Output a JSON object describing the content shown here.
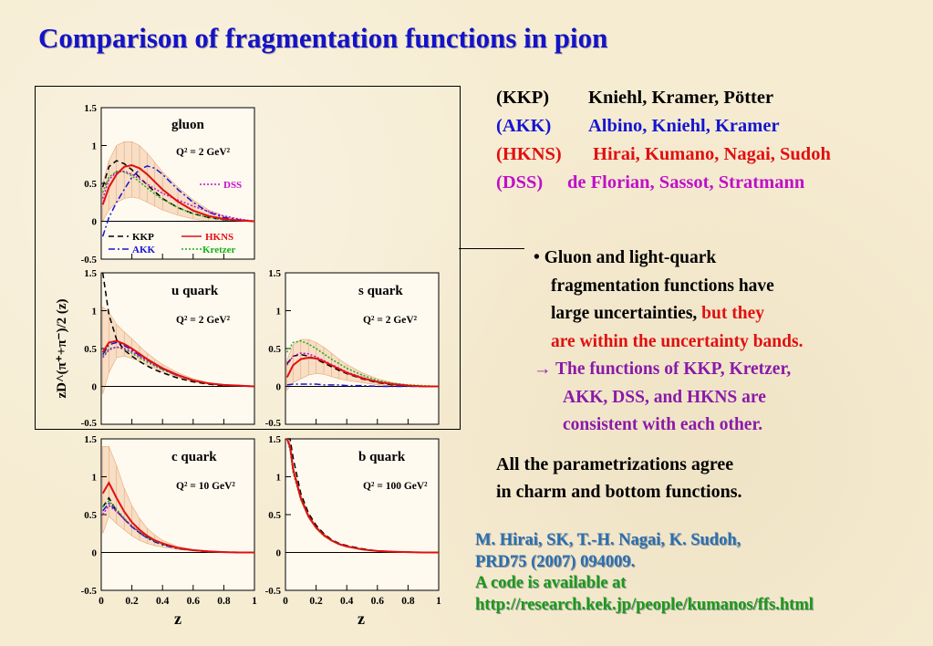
{
  "title": "Comparison of fragmentation functions in pion",
  "references": [
    {
      "tag": "(KKP)",
      "authors": "Kniehl, Kramer, Pötter",
      "color": "#000000"
    },
    {
      "tag": "(AKK)",
      "authors": "Albino, Kniehl, Kramer",
      "color": "#1515d0"
    },
    {
      "tag": "(HKNS)",
      "authors": "Hirai, Kumano, Nagai, Sudoh",
      "color": "#e01010"
    },
    {
      "tag": "(DSS)",
      "authors": "de Florian, Sassot, Stratmann",
      "color": "#c010c8"
    }
  ],
  "bullet": {
    "line1": "• Gluon and light-quark",
    "line2": "fragmentation functions have",
    "line3a": "large uncertainties, ",
    "line3b": "but they",
    "line4": "are within the uncertainty bands.",
    "line5": "→ The functions of KKP, Kretzer,",
    "line6": "AKK, DSS, and HKNS are",
    "line7": "consistent with each other."
  },
  "agree": {
    "line1": "All the parametrizations agree",
    "line2": "in charm and bottom functions."
  },
  "citation": {
    "line1": "M. Hirai,  SK,  T.-H. Nagai,  K. Sudoh,",
    "line2": "PRD75 (2007) 094009.",
    "line3": "A code is available at",
    "line4": "http://research.kek.jp/people/kumanos/ffs.html"
  },
  "colors": {
    "title": "#1313c8",
    "red": "#e01010",
    "purple": "#8a1aa8",
    "cite_blue": "#2a6fb0",
    "cite_green": "#1a9a1a",
    "band": "#e8b48a"
  },
  "chart_data": {
    "type": "line",
    "ylabel": "zD^(π⁺+π⁻)/2 (z)",
    "xlabel": "z",
    "xlim": [
      0,
      1
    ],
    "ylim": [
      -0.5,
      1.5
    ],
    "xticks": [
      "0",
      "0.2",
      "0.4",
      "0.6",
      "0.8",
      "1"
    ],
    "yticks": [
      "-0.5",
      "0",
      "0.5",
      "1",
      "1.5"
    ],
    "legend": [
      {
        "name": "KKP",
        "color": "#000000",
        "style": "dashed"
      },
      {
        "name": "HKNS",
        "color": "#e01010",
        "style": "solid"
      },
      {
        "name": "AKK",
        "color": "#1515d0",
        "style": "dashdot"
      },
      {
        "name": "Kretzer",
        "color": "#18b018",
        "style": "dotted"
      },
      {
        "name": "DSS",
        "color": "#c010c8",
        "style": "dotted"
      }
    ],
    "panels": [
      {
        "label": "gluon",
        "q2": "Q² = 2 GeV²",
        "x": [
          0.01,
          0.05,
          0.1,
          0.15,
          0.2,
          0.25,
          0.3,
          0.35,
          0.4,
          0.5,
          0.6,
          0.7,
          0.8,
          0.9,
          1.0
        ],
        "series": {
          "KKP": [
            0.45,
            0.72,
            0.8,
            0.76,
            0.68,
            0.58,
            0.48,
            0.39,
            0.3,
            0.18,
            0.1,
            0.05,
            0.02,
            0.01,
            0.0
          ],
          "HKNS": [
            0.22,
            0.45,
            0.62,
            0.72,
            0.74,
            0.7,
            0.62,
            0.52,
            0.42,
            0.26,
            0.14,
            0.07,
            0.03,
            0.01,
            0.0
          ],
          "AKK": [
            -0.2,
            0.05,
            0.25,
            0.42,
            0.58,
            0.68,
            0.73,
            0.7,
            0.62,
            0.42,
            0.25,
            0.12,
            0.05,
            0.02,
            0.0
          ],
          "Kretzer": [
            0.38,
            0.58,
            0.66,
            0.65,
            0.6,
            0.52,
            0.44,
            0.36,
            0.29,
            0.18,
            0.1,
            0.05,
            0.02,
            0.01,
            0.0
          ],
          "DSS": [
            0.3,
            0.55,
            0.65,
            0.66,
            0.62,
            0.56,
            0.49,
            0.43,
            0.37,
            0.28,
            0.2,
            0.13,
            0.07,
            0.03,
            0.0
          ]
        },
        "band_upper": [
          0.5,
          0.8,
          1.0,
          1.05,
          1.05,
          1.0,
          0.9,
          0.78,
          0.65,
          0.45,
          0.28,
          0.15,
          0.07,
          0.03,
          0.0
        ],
        "band_lower": [
          0.0,
          0.15,
          0.25,
          0.3,
          0.32,
          0.3,
          0.25,
          0.2,
          0.15,
          0.08,
          0.03,
          0.0,
          0.0,
          0.0,
          0.0
        ]
      },
      {
        "label": "u quark",
        "q2": "Q² = 2 GeV²",
        "x": [
          0.01,
          0.05,
          0.1,
          0.15,
          0.2,
          0.25,
          0.3,
          0.35,
          0.4,
          0.5,
          0.6,
          0.7,
          0.8,
          0.9,
          1.0
        ],
        "series": {
          "KKP": [
            1.5,
            0.95,
            0.62,
            0.48,
            0.4,
            0.33,
            0.27,
            0.22,
            0.18,
            0.11,
            0.06,
            0.03,
            0.01,
            0.005,
            0.0
          ],
          "HKNS": [
            0.45,
            0.58,
            0.6,
            0.56,
            0.5,
            0.43,
            0.36,
            0.3,
            0.24,
            0.15,
            0.08,
            0.04,
            0.02,
            0.01,
            0.0
          ],
          "AKK": [
            0.42,
            0.55,
            0.58,
            0.54,
            0.48,
            0.41,
            0.35,
            0.29,
            0.23,
            0.14,
            0.08,
            0.04,
            0.02,
            0.01,
            0.0
          ],
          "Kretzer": [
            0.4,
            0.5,
            0.52,
            0.49,
            0.44,
            0.38,
            0.32,
            0.27,
            0.22,
            0.14,
            0.08,
            0.04,
            0.02,
            0.01,
            0.0
          ],
          "DSS": [
            0.38,
            0.48,
            0.52,
            0.5,
            0.46,
            0.4,
            0.34,
            0.28,
            0.23,
            0.14,
            0.08,
            0.04,
            0.02,
            0.01,
            0.0
          ]
        },
        "band_upper": [
          1.05,
          0.98,
          0.82,
          0.72,
          0.63,
          0.53,
          0.44,
          0.36,
          0.29,
          0.18,
          0.1,
          0.05,
          0.02,
          0.01,
          0.0
        ],
        "band_lower": [
          -0.1,
          0.18,
          0.38,
          0.4,
          0.37,
          0.33,
          0.28,
          0.24,
          0.19,
          0.12,
          0.06,
          0.03,
          0.01,
          0.0,
          0.0
        ]
      },
      {
        "label": "s quark",
        "q2": "Q² = 2 GeV²",
        "x": [
          0.01,
          0.05,
          0.1,
          0.15,
          0.2,
          0.25,
          0.3,
          0.35,
          0.4,
          0.5,
          0.6,
          0.7,
          0.8,
          0.9,
          1.0
        ],
        "series": {
          "KKP": [
            0.3,
            0.4,
            0.42,
            0.4,
            0.36,
            0.31,
            0.26,
            0.21,
            0.17,
            0.1,
            0.05,
            0.02,
            0.01,
            0.0,
            0.0
          ],
          "HKNS": [
            0.12,
            0.28,
            0.36,
            0.38,
            0.37,
            0.33,
            0.28,
            0.23,
            0.18,
            0.11,
            0.06,
            0.03,
            0.01,
            0.0,
            0.0
          ],
          "AKK": [
            0.02,
            0.03,
            0.03,
            0.03,
            0.03,
            0.02,
            0.02,
            0.02,
            0.01,
            0.01,
            0.0,
            0.0,
            0.0,
            0.0,
            0.0
          ],
          "Kretzer": [
            0.45,
            0.58,
            0.6,
            0.56,
            0.5,
            0.43,
            0.36,
            0.3,
            0.24,
            0.15,
            0.08,
            0.04,
            0.02,
            0.01,
            0.0
          ],
          "DSS": [
            0.28,
            0.4,
            0.44,
            0.43,
            0.39,
            0.34,
            0.29,
            0.24,
            0.19,
            0.12,
            0.06,
            0.03,
            0.01,
            0.0,
            0.0
          ]
        },
        "band_upper": [
          0.35,
          0.55,
          0.62,
          0.62,
          0.58,
          0.52,
          0.44,
          0.36,
          0.29,
          0.18,
          0.1,
          0.05,
          0.02,
          0.01,
          0.0
        ],
        "band_lower": [
          -0.05,
          0.05,
          0.1,
          0.15,
          0.17,
          0.16,
          0.13,
          0.1,
          0.08,
          0.05,
          0.02,
          0.01,
          0.0,
          0.0,
          0.0
        ]
      },
      {
        "label": "c quark",
        "q2": "Q² = 10 GeV²",
        "x": [
          0.01,
          0.05,
          0.1,
          0.15,
          0.2,
          0.25,
          0.3,
          0.35,
          0.4,
          0.5,
          0.6,
          0.7,
          0.8,
          0.9,
          1.0
        ],
        "series": {
          "KKP": [
            0.6,
            0.72,
            0.55,
            0.44,
            0.34,
            0.26,
            0.2,
            0.15,
            0.11,
            0.06,
            0.03,
            0.01,
            0.005,
            0.0,
            0.0
          ],
          "HKNS": [
            0.78,
            0.92,
            0.72,
            0.54,
            0.4,
            0.3,
            0.22,
            0.16,
            0.12,
            0.06,
            0.03,
            0.015,
            0.005,
            0.0,
            0.0
          ],
          "AKK": [
            0.55,
            0.65,
            0.55,
            0.44,
            0.34,
            0.26,
            0.19,
            0.14,
            0.1,
            0.05,
            0.03,
            0.01,
            0.005,
            0.0,
            0.0
          ],
          "Kretzer": [
            0.6,
            0.68,
            0.57,
            0.45,
            0.35,
            0.27,
            0.2,
            0.15,
            0.11,
            0.06,
            0.03,
            0.01,
            0.005,
            0.0,
            0.0
          ],
          "DSS": [
            0.5,
            0.62,
            0.54,
            0.44,
            0.35,
            0.27,
            0.21,
            0.16,
            0.12,
            0.06,
            0.03,
            0.01,
            0.005,
            0.0,
            0.0
          ]
        },
        "band_upper": [
          1.4,
          1.4,
          1.15,
          0.85,
          0.62,
          0.45,
          0.32,
          0.23,
          0.16,
          0.08,
          0.04,
          0.02,
          0.01,
          0.0,
          0.0
        ],
        "band_lower": [
          0.25,
          0.48,
          0.38,
          0.3,
          0.22,
          0.16,
          0.12,
          0.09,
          0.07,
          0.04,
          0.02,
          0.01,
          0.0,
          0.0,
          0.0
        ]
      },
      {
        "label": "b quark",
        "q2": "Q² = 100 GeV²",
        "x": [
          0.01,
          0.03,
          0.05,
          0.1,
          0.15,
          0.2,
          0.25,
          0.3,
          0.35,
          0.4,
          0.5,
          0.6,
          0.7,
          0.8,
          0.9,
          1.0
        ],
        "series": {
          "KKP": [
            1.6,
            1.55,
            1.25,
            0.78,
            0.52,
            0.36,
            0.25,
            0.17,
            0.12,
            0.09,
            0.05,
            0.02,
            0.01,
            0.005,
            0.0,
            0.0
          ],
          "HKNS": [
            1.6,
            1.4,
            1.1,
            0.72,
            0.48,
            0.33,
            0.23,
            0.16,
            0.11,
            0.08,
            0.04,
            0.02,
            0.01,
            0.005,
            0.0,
            0.0
          ],
          "AKK": [
            1.6,
            1.4,
            1.1,
            0.72,
            0.48,
            0.33,
            0.23,
            0.16,
            0.11,
            0.08,
            0.04,
            0.02,
            0.01,
            0.005,
            0.0,
            0.0
          ],
          "Kretzer": [
            1.6,
            1.35,
            1.05,
            0.7,
            0.47,
            0.32,
            0.22,
            0.16,
            0.11,
            0.08,
            0.04,
            0.02,
            0.01,
            0.005,
            0.0,
            0.0
          ],
          "DSS": [
            1.6,
            1.38,
            1.08,
            0.71,
            0.48,
            0.33,
            0.23,
            0.16,
            0.11,
            0.08,
            0.04,
            0.02,
            0.01,
            0.005,
            0.0,
            0.0
          ]
        },
        "band_upper": [
          1.6,
          1.45,
          1.15,
          0.76,
          0.51,
          0.35,
          0.25,
          0.17,
          0.12,
          0.09,
          0.05,
          0.02,
          0.01,
          0.005,
          0.0,
          0.0
        ],
        "band_lower": [
          1.55,
          1.35,
          1.05,
          0.68,
          0.45,
          0.31,
          0.21,
          0.15,
          0.1,
          0.07,
          0.04,
          0.02,
          0.01,
          0.005,
          0.0,
          0.0
        ]
      }
    ]
  }
}
